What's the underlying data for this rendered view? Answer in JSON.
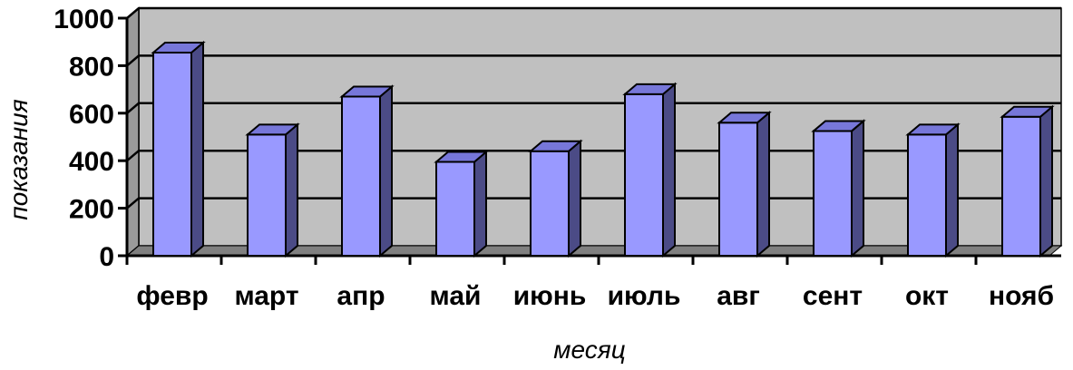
{
  "chart_data": {
    "type": "bar",
    "title": "",
    "xlabel": "месяц",
    "ylabel": "показания",
    "categories": [
      "февр",
      "март",
      "апр",
      "май",
      "июнь",
      "июль",
      "авг",
      "сент",
      "окт",
      "нояб"
    ],
    "values": [
      855,
      510,
      670,
      395,
      440,
      680,
      560,
      525,
      510,
      585
    ],
    "ylim": [
      0,
      1000
    ],
    "yticks": [
      "0",
      "200",
      "400",
      "600",
      "800",
      "1000"
    ],
    "grid": true,
    "three_d": true,
    "legend": "none",
    "colors": {
      "bar_front": "#9999ff",
      "bar_side": "#4b4b86",
      "bar_top": "#7777d9",
      "plot_wall": "#c0c0c0",
      "floor": "#808080",
      "gridline": "#000000"
    }
  }
}
